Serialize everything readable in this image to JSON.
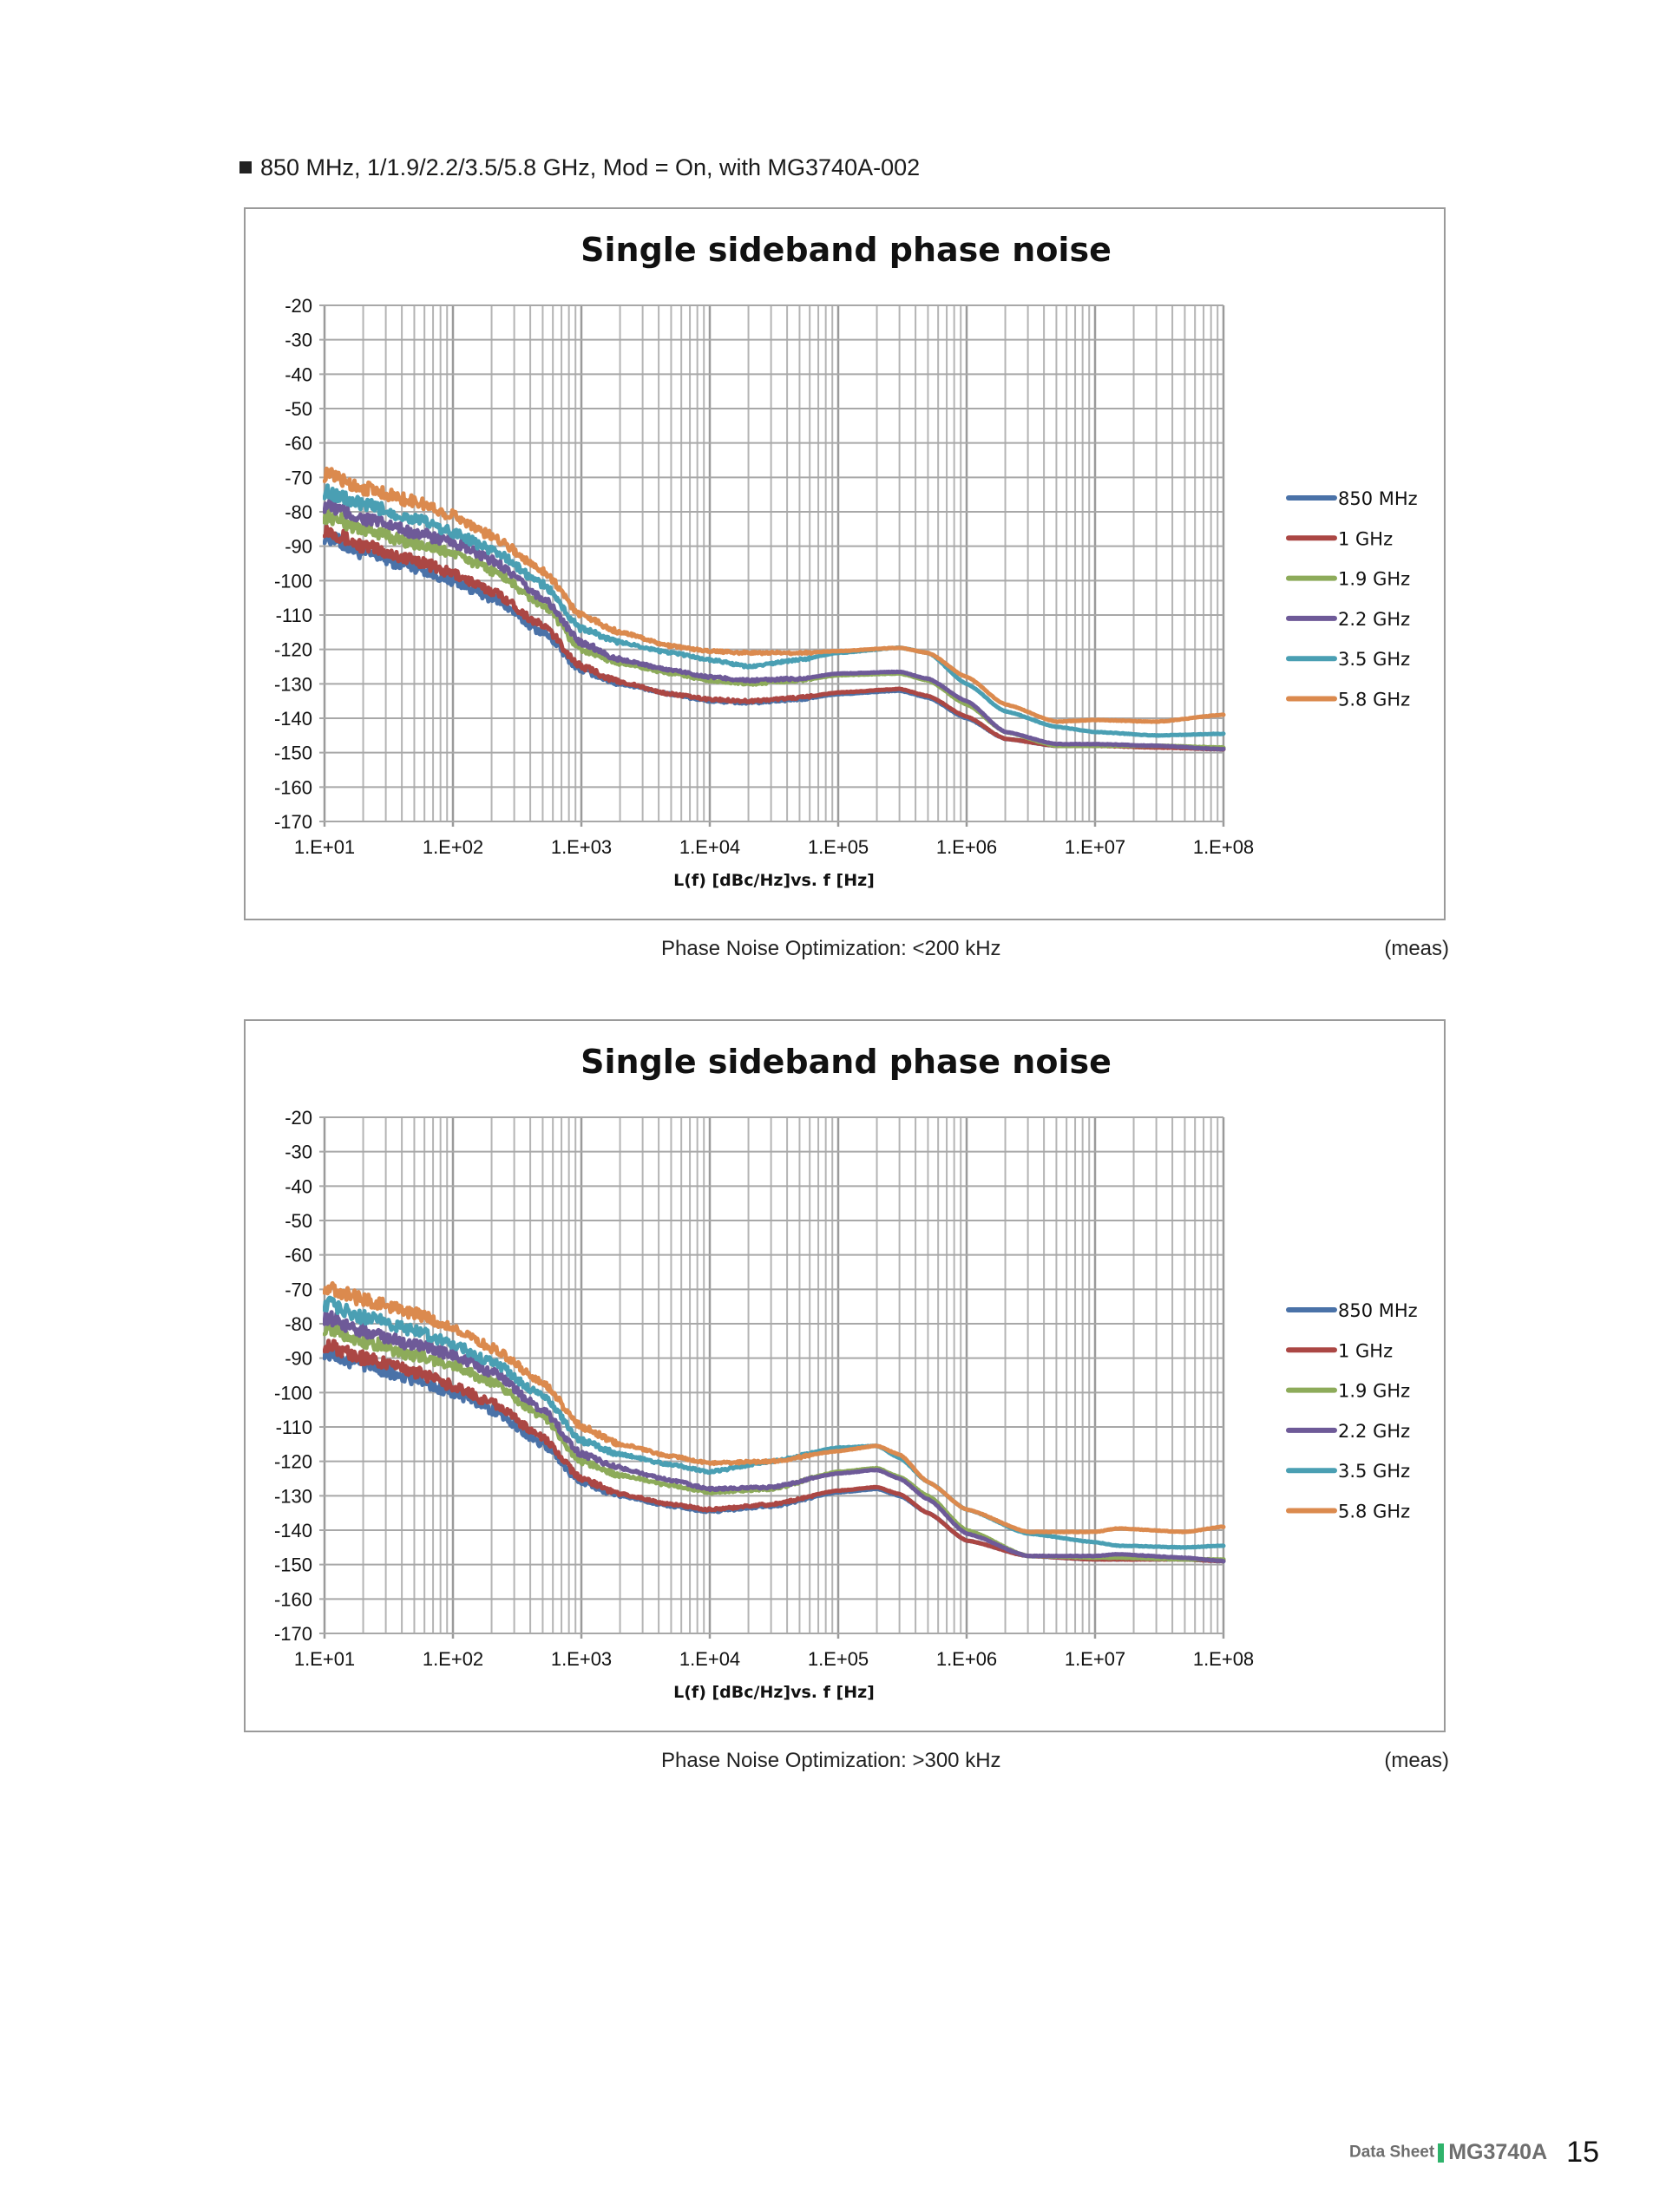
{
  "section_header": "850 MHz, 1/1.9/2.2/3.5/5.8 GHz, Mod = On, with MG3740A-002",
  "footer": {
    "doc_type": "Data Sheet",
    "model": "MG3740A",
    "page": "15"
  },
  "captions": [
    {
      "text": "Phase Noise Optimization: <200 kHz",
      "note": "(meas)"
    },
    {
      "text": "Phase Noise Optimization: >300 kHz",
      "note": "(meas)"
    }
  ],
  "chart_data": [
    {
      "type": "line",
      "title": "Single sideband phase noise",
      "xlabel": "L(f) [dBc/Hz]vs. f [Hz]",
      "ylabel": "",
      "xscale": "log",
      "xlim": [
        10,
        100000000
      ],
      "ylim": [
        -170,
        -20
      ],
      "grid": true,
      "legend": "right",
      "xticks": [
        "1.E+01",
        "1.E+02",
        "1.E+03",
        "1.E+04",
        "1.E+05",
        "1.E+06",
        "1.E+07",
        "1.E+08"
      ],
      "yticks": [
        "-20",
        "-30",
        "-40",
        "-50",
        "-60",
        "-70",
        "-80",
        "-90",
        "-100",
        "-110",
        "-120",
        "-130",
        "-140",
        "-150",
        "-160",
        "-170"
      ],
      "x": [
        10,
        20,
        50,
        100,
        200,
        500,
        1000,
        2000,
        5000,
        10000,
        20000,
        50000,
        100000,
        300000,
        500000,
        1000000,
        2000000,
        5000000,
        10000000,
        30000000,
        100000000
      ],
      "series": [
        {
          "name": "850 MHz",
          "color": "#4a72a8",
          "values": [
            -87,
            -92,
            -96,
            -100,
            -105,
            -115,
            -126,
            -130,
            -133,
            -135,
            -135.5,
            -134.5,
            -133,
            -132,
            -134,
            -140,
            -146,
            -148,
            -148,
            -148,
            -149
          ]
        },
        {
          "name": "1 GHz",
          "color": "#ab4744",
          "values": [
            -85,
            -90,
            -94,
            -98,
            -103,
            -113,
            -125,
            -129.5,
            -133,
            -134.5,
            -135,
            -134,
            -132.5,
            -131.5,
            -133.5,
            -139.5,
            -146,
            -148,
            -148,
            -148.5,
            -149
          ]
        },
        {
          "name": "1.9 GHz",
          "color": "#8dab5a",
          "values": [
            -81,
            -85,
            -89,
            -92,
            -97,
            -107,
            -120,
            -124,
            -127,
            -129,
            -130,
            -129,
            -127.5,
            -127,
            -129,
            -136,
            -144,
            -148,
            -148,
            -148,
            -148.5
          ]
        },
        {
          "name": "2.2 GHz",
          "color": "#6e5a98",
          "values": [
            -78,
            -82,
            -86,
            -89,
            -94,
            -105,
            -118,
            -123,
            -126,
            -128,
            -129,
            -128.5,
            -127,
            -126.5,
            -128.5,
            -135,
            -144,
            -147.5,
            -147.5,
            -148,
            -149
          ]
        },
        {
          "name": "3.5 GHz",
          "color": "#4a9fb3",
          "values": [
            -74,
            -78,
            -82,
            -86,
            -91,
            -101,
            -114,
            -118,
            -121,
            -123,
            -125,
            -123,
            -121,
            -119.5,
            -121,
            -130,
            -138,
            -142.5,
            -144,
            -145,
            -144.5
          ]
        },
        {
          "name": "5.8 GHz",
          "color": "#db8a4e",
          "values": [
            -69,
            -73,
            -77,
            -81,
            -87,
            -97,
            -110,
            -115,
            -119,
            -120.5,
            -121,
            -121,
            -120.5,
            -119.5,
            -121,
            -128,
            -136,
            -141,
            -140.5,
            -141,
            -139
          ]
        }
      ]
    },
    {
      "type": "line",
      "title": "Single sideband phase noise",
      "xlabel": "L(f) [dBc/Hz]vs. f [Hz]",
      "ylabel": "",
      "xscale": "log",
      "xlim": [
        10,
        100000000
      ],
      "ylim": [
        -170,
        -20
      ],
      "grid": true,
      "legend": "right",
      "xticks": [
        "1.E+01",
        "1.E+02",
        "1.E+03",
        "1.E+04",
        "1.E+05",
        "1.E+06",
        "1.E+07",
        "1.E+08"
      ],
      "yticks": [
        "-20",
        "-30",
        "-40",
        "-50",
        "-60",
        "-70",
        "-80",
        "-90",
        "-100",
        "-110",
        "-120",
        "-130",
        "-140",
        "-150",
        "-160",
        "-170"
      ],
      "x": [
        10,
        20,
        50,
        100,
        200,
        500,
        1000,
        2000,
        5000,
        10000,
        30000,
        100000,
        200000,
        300000,
        500000,
        1000000,
        3000000,
        10000000,
        15000000,
        50000000,
        100000000
      ],
      "series": [
        {
          "name": "850 MHz",
          "color": "#4a72a8",
          "values": [
            -88,
            -92,
            -96,
            -100,
            -105,
            -115,
            -126,
            -130,
            -133,
            -134.5,
            -133,
            -129,
            -128,
            -130,
            -135,
            -143,
            -147.5,
            -148.5,
            -148.5,
            -148.5,
            -149
          ]
        },
        {
          "name": "1 GHz",
          "color": "#ab4744",
          "values": [
            -86,
            -90,
            -94,
            -98,
            -103,
            -113,
            -125,
            -129.5,
            -132.5,
            -134,
            -132.5,
            -128.5,
            -127.5,
            -129.5,
            -135,
            -143,
            -147.5,
            -148.5,
            -148.5,
            -148.5,
            -149
          ]
        },
        {
          "name": "1.9 GHz",
          "color": "#8dab5a",
          "values": [
            -81,
            -85,
            -89,
            -92,
            -97,
            -107,
            -120,
            -124,
            -127,
            -129,
            -128,
            -123,
            -122,
            -124.5,
            -130,
            -140,
            -147.5,
            -148,
            -148,
            -148.5,
            -148.5
          ]
        },
        {
          "name": "2.2 GHz",
          "color": "#6e5a98",
          "values": [
            -78,
            -82,
            -86,
            -89,
            -94,
            -105,
            -118,
            -122,
            -125.5,
            -128,
            -127.5,
            -123.5,
            -122.5,
            -125,
            -131,
            -141,
            -147.5,
            -147.5,
            -147,
            -148,
            -149
          ]
        },
        {
          "name": "3.5 GHz",
          "color": "#4a9fb3",
          "values": [
            -74,
            -78,
            -82,
            -86,
            -91,
            -101,
            -114,
            -118,
            -121,
            -123,
            -120,
            -116,
            -115.5,
            -119,
            -126,
            -134,
            -141,
            -143.5,
            -144.5,
            -145,
            -144.5
          ]
        },
        {
          "name": "5.8 GHz",
          "color": "#db8a4e",
          "values": [
            -69,
            -73,
            -77,
            -81,
            -87,
            -97,
            -110,
            -115,
            -118.5,
            -120.5,
            -120,
            -117,
            -115.5,
            -118,
            -126,
            -134,
            -140.5,
            -140.5,
            -139.5,
            -140.5,
            -139
          ]
        }
      ]
    }
  ]
}
